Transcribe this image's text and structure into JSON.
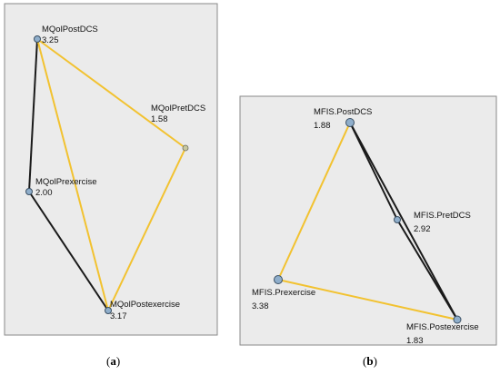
{
  "panels": [
    {
      "id": "a",
      "caption_open": "(",
      "caption_letter": "a",
      "caption_close": ")",
      "nodes": [
        {
          "key": "post_dcs",
          "name": "MQolPostDCS",
          "value": "3.25"
        },
        {
          "key": "pret_dcs",
          "name": "MQolPretDCS",
          "value": "1.58"
        },
        {
          "key": "prexercise",
          "name": "MQolPrexercise",
          "value": "2.00"
        },
        {
          "key": "postexercise",
          "name": "MQolPostexercise",
          "value": "3.17"
        }
      ],
      "edges": [
        {
          "from": "post_dcs",
          "to": "prexercise",
          "color": "#1a1a1a"
        },
        {
          "from": "prexercise",
          "to": "postexercise",
          "color": "#1a1a1a"
        },
        {
          "from": "post_dcs",
          "to": "pret_dcs",
          "color": "#f2c230"
        },
        {
          "from": "post_dcs",
          "to": "postexercise",
          "color": "#f2c230"
        },
        {
          "from": "pret_dcs",
          "to": "postexercise",
          "color": "#f2c230"
        }
      ]
    },
    {
      "id": "b",
      "caption_open": "(",
      "caption_letter": "b",
      "caption_close": ")",
      "nodes": [
        {
          "key": "post_dcs",
          "name": "MFIS.PostDCS",
          "value": "1.88"
        },
        {
          "key": "pret_dcs",
          "name": "MFIS.PretDCS",
          "value": "2.92"
        },
        {
          "key": "prexercise",
          "name": "MFIS.Prexercise",
          "value": "3.38"
        },
        {
          "key": "postexercise",
          "name": "MFIS.Postexercise",
          "value": "1.83"
        }
      ],
      "edges": [
        {
          "from": "post_dcs",
          "to": "postexercise",
          "color": "#1a1a1a"
        },
        {
          "from": "post_dcs",
          "to": "pret_dcs",
          "color": "#1a1a1a"
        },
        {
          "from": "pret_dcs",
          "to": "postexercise",
          "color": "#1a1a1a"
        },
        {
          "from": "post_dcs",
          "to": "prexercise",
          "color": "#f2c230"
        },
        {
          "from": "prexercise",
          "to": "postexercise",
          "color": "#f2c230"
        }
      ]
    }
  ],
  "colors": {
    "panel_bg": "#ebebeb",
    "panel_border": "#8a8a8a",
    "node_fill": "#8faecb",
    "node_stroke": "#3a4f63"
  }
}
